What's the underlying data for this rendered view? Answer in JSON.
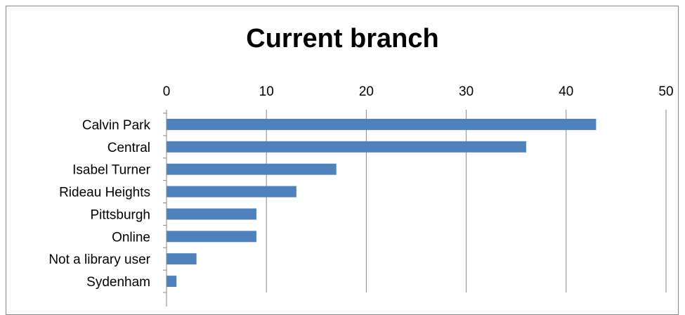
{
  "chart_data": {
    "type": "bar",
    "orientation": "horizontal",
    "title": "Current branch",
    "categories": [
      "Calvin Park",
      "Central",
      "Isabel Turner",
      "Rideau Heights",
      "Pittsburgh",
      "Online",
      "Not a library user",
      "Sydenham"
    ],
    "values": [
      43,
      36,
      17,
      13,
      9,
      9,
      3,
      1
    ],
    "xlim": [
      0,
      50
    ],
    "xticks": [
      0,
      10,
      20,
      30,
      40,
      50
    ],
    "x_axis_position": "top",
    "grid": "vertical",
    "legend": "none",
    "bar_color": "#4F81BD",
    "xlabel": "",
    "ylabel": ""
  }
}
